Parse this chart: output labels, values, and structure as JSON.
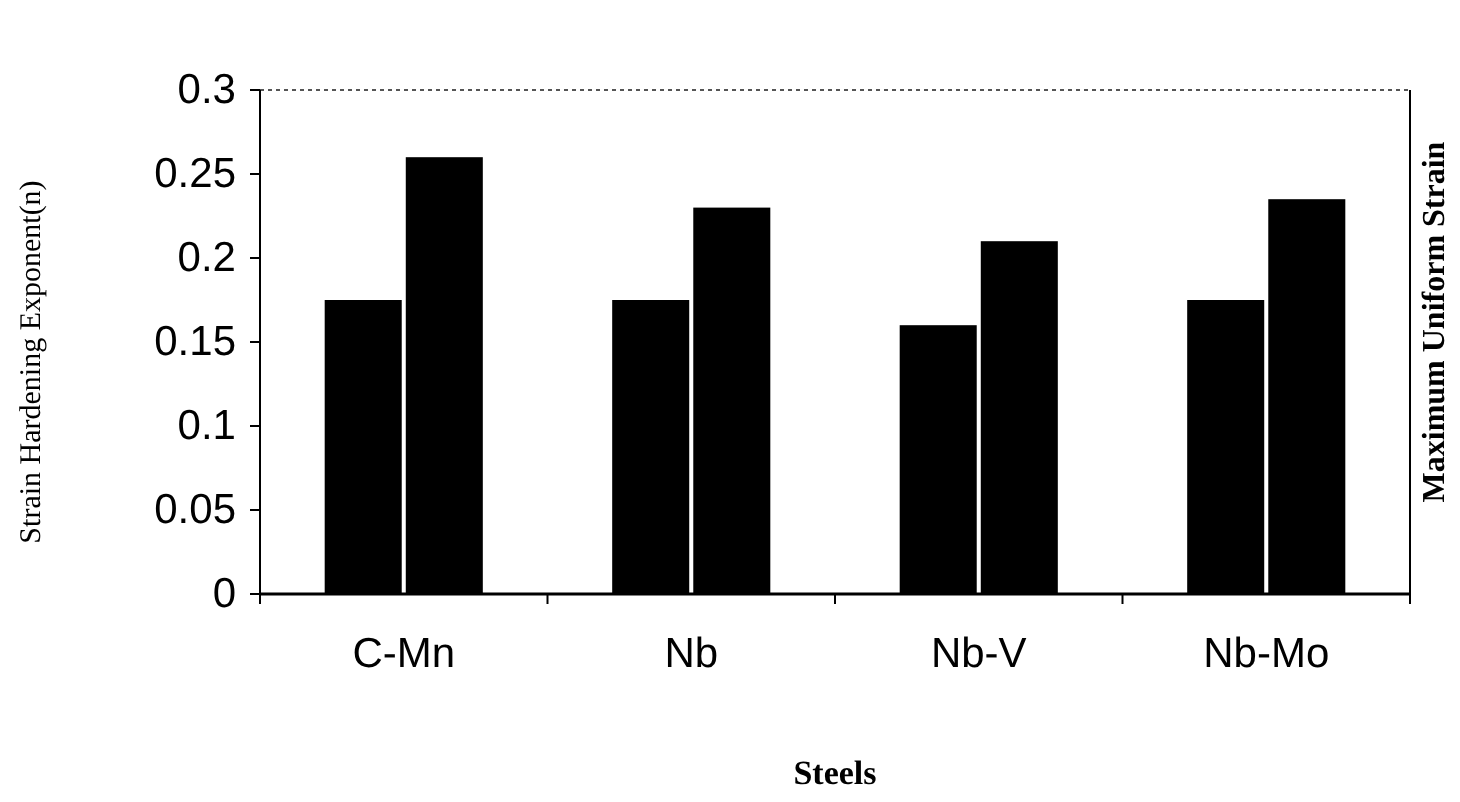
{
  "chart_data": {
    "type": "bar",
    "xlabel": "Steels",
    "ylabel": "Strain Hardening Exponent(n)",
    "y2label": "Maximum Uniform Strain",
    "categories": [
      "C-Mn",
      "Nb",
      "Nb-V",
      "Nb-Mo"
    ],
    "series": [
      {
        "color": "#000000",
        "values": [
          0.175,
          0.175,
          0.16,
          0.175
        ]
      },
      {
        "color": "#000000",
        "values": [
          0.26,
          0.23,
          0.21,
          0.235
        ]
      }
    ],
    "ylim": [
      0,
      0.3
    ],
    "yticks": [
      0,
      0.05,
      0.1,
      0.15,
      0.2,
      0.25,
      0.3
    ]
  }
}
